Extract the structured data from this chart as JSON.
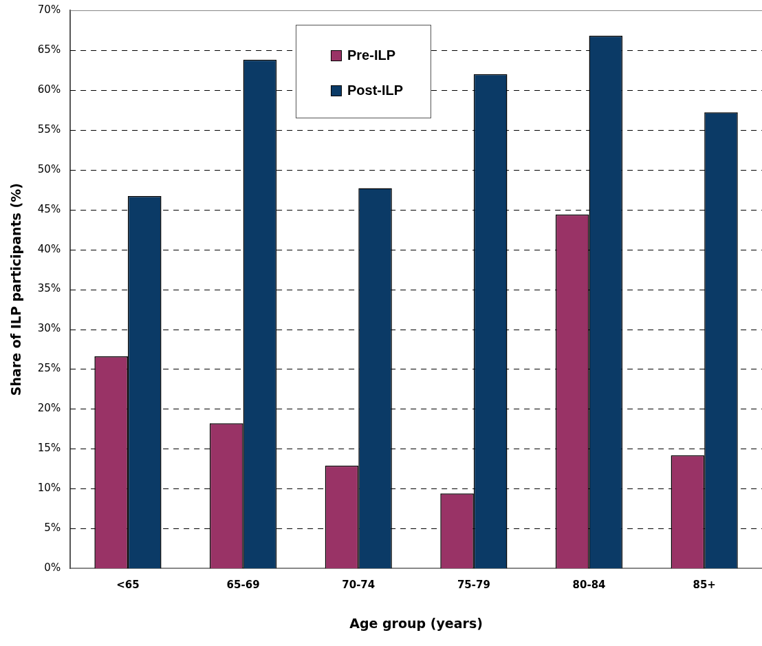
{
  "chart_data": {
    "type": "bar",
    "xlabel": "Age group (years)",
    "ylabel": "Share of ILP participants (%)",
    "categories": [
      "<65",
      "65-69",
      "70-74",
      "75-79",
      "80-84",
      "85+"
    ],
    "series": [
      {
        "name": "Pre-ILP",
        "color": "#993366",
        "values": [
          26.6,
          18.2,
          12.9,
          9.4,
          44.4,
          14.2
        ]
      },
      {
        "name": "Post-ILP",
        "color": "#0b3a66",
        "values": [
          46.7,
          63.8,
          47.7,
          62.0,
          66.8,
          57.2
        ]
      }
    ],
    "ylim": [
      0,
      70
    ],
    "yticks": [
      {
        "value": 0,
        "label": "0%"
      },
      {
        "value": 5,
        "label": "5%"
      },
      {
        "value": 10,
        "label": "10%"
      },
      {
        "value": 15,
        "label": "15%"
      },
      {
        "value": 20,
        "label": "20%"
      },
      {
        "value": 25,
        "label": "25%"
      },
      {
        "value": 30,
        "label": "30%"
      },
      {
        "value": 35,
        "label": "35%"
      },
      {
        "value": 40,
        "label": "40%"
      },
      {
        "value": 45,
        "label": "45%"
      },
      {
        "value": 50,
        "label": "50%"
      },
      {
        "value": 55,
        "label": "55%"
      },
      {
        "value": 60,
        "label": "60%"
      },
      {
        "value": 65,
        "label": "65%"
      },
      {
        "value": 70,
        "label": "70%"
      }
    ],
    "grid": "y",
    "legend": "top"
  }
}
